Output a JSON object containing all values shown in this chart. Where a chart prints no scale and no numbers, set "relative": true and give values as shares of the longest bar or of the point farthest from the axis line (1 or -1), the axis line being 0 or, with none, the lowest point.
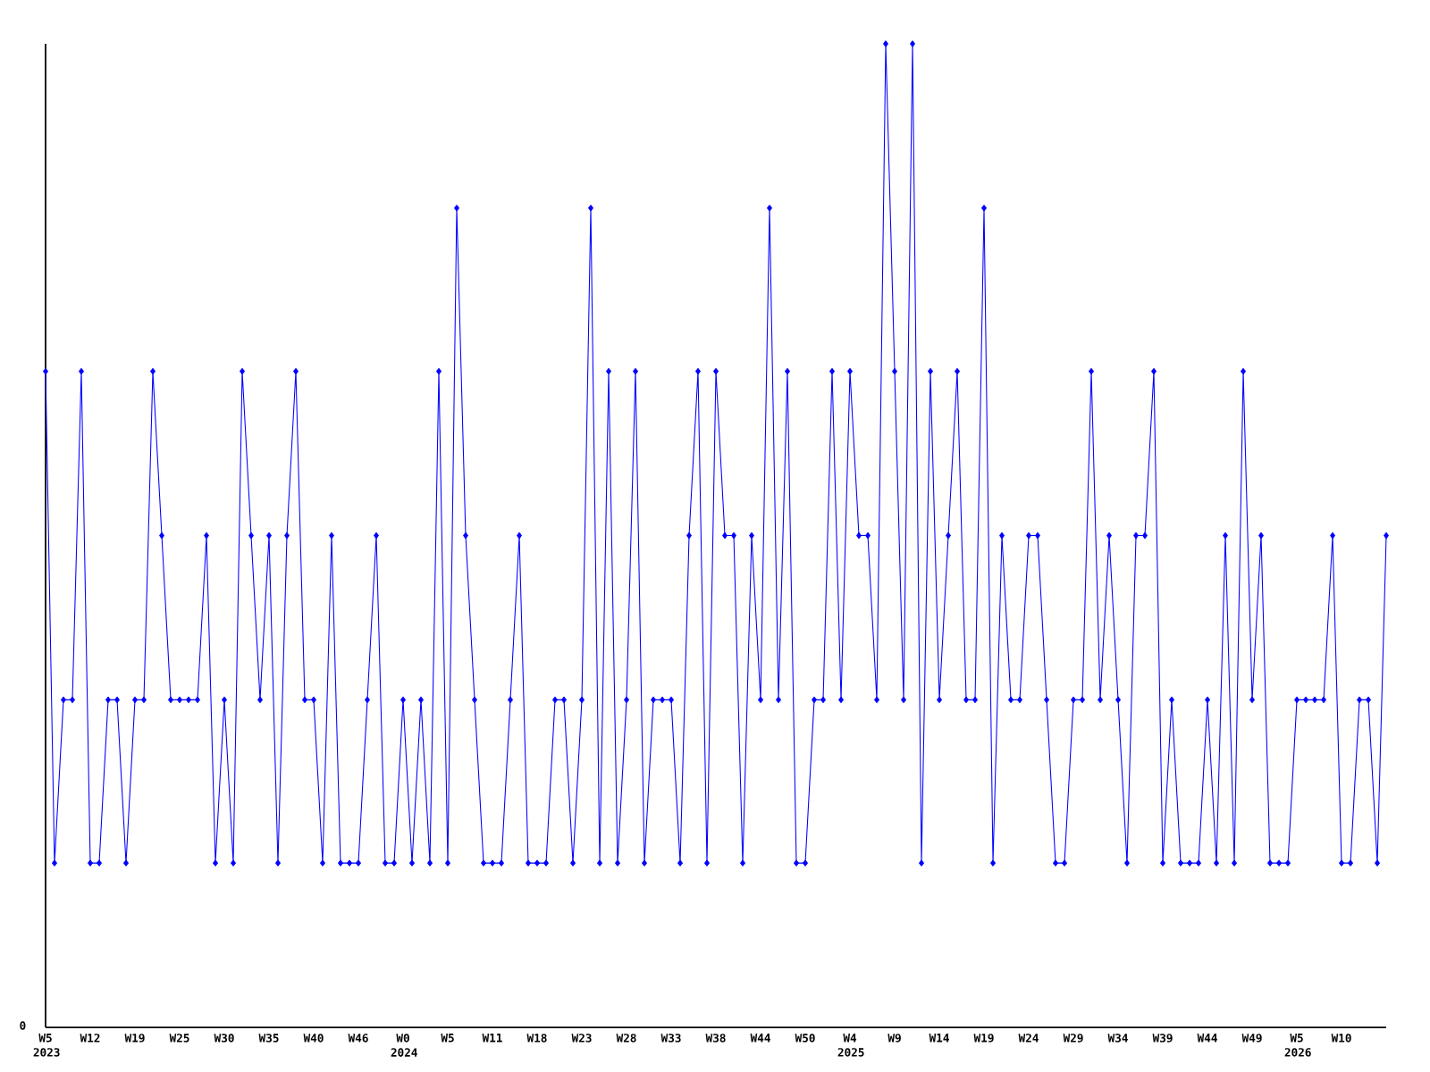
{
  "chart_data": {
    "type": "line",
    "relative": true,
    "marker": "diamond",
    "line_style": "solid",
    "categories": [
      "W5 2023",
      null,
      null,
      null,
      null,
      "W12",
      null,
      null,
      null,
      null,
      "W19",
      null,
      null,
      null,
      null,
      "W25",
      null,
      null,
      null,
      null,
      "W30",
      null,
      null,
      null,
      null,
      "W35",
      null,
      null,
      null,
      null,
      "W40",
      null,
      null,
      null,
      null,
      "W46",
      null,
      null,
      null,
      null,
      "W0 2024",
      null,
      null,
      null,
      null,
      "W5",
      null,
      null,
      null,
      null,
      "W11",
      null,
      null,
      null,
      null,
      "W18",
      null,
      null,
      null,
      null,
      "W23",
      null,
      null,
      null,
      null,
      "W28",
      null,
      null,
      null,
      null,
      "W33",
      null,
      null,
      null,
      null,
      "W38",
      null,
      null,
      null,
      null,
      "W44",
      null,
      null,
      null,
      null,
      "W50",
      null,
      null,
      null,
      null,
      "W4 2025",
      null,
      null,
      null,
      null,
      "W9",
      null,
      null,
      null,
      null,
      "W14",
      null,
      null,
      null,
      null,
      "W19",
      null,
      null,
      null,
      null,
      "W24",
      null,
      null,
      null,
      null,
      "W29",
      null,
      null,
      null,
      null,
      "W34",
      null,
      null,
      null,
      null,
      "W39",
      null,
      null,
      null,
      null,
      "W44",
      null,
      null,
      null,
      null,
      "W49",
      null,
      null,
      null,
      null,
      "W5 2026",
      null,
      null,
      null,
      null,
      "W10",
      null,
      null,
      null,
      null,
      null
    ],
    "series": [
      {
        "color": "#0000ff",
        "values": [
          0.667,
          0.167,
          0.333,
          0.333,
          0.667,
          0.167,
          0.167,
          0.333,
          0.333,
          0.167,
          0.333,
          0.333,
          0.667,
          0.5,
          0.333,
          0.333,
          0.333,
          0.333,
          0.5,
          0.167,
          0.333,
          0.167,
          0.667,
          0.5,
          0.333,
          0.5,
          0.167,
          0.5,
          0.667,
          0.333,
          0.333,
          0.167,
          0.5,
          0.167,
          0.167,
          0.167,
          0.333,
          0.5,
          0.167,
          0.167,
          0.333,
          0.167,
          0.333,
          0.167,
          0.667,
          0.167,
          0.833,
          0.5,
          0.333,
          0.167,
          0.167,
          0.167,
          0.333,
          0.5,
          0.167,
          0.167,
          0.167,
          0.333,
          0.333,
          0.167,
          0.333,
          0.833,
          0.167,
          0.667,
          0.167,
          0.333,
          0.667,
          0.167,
          0.333,
          0.333,
          0.333,
          0.167,
          0.5,
          0.667,
          0.167,
          0.667,
          0.5,
          0.5,
          0.167,
          0.5,
          0.333,
          0.833,
          0.333,
          0.667,
          0.167,
          0.167,
          0.333,
          0.333,
          0.667,
          0.333,
          0.667,
          0.5,
          0.5,
          0.333,
          1,
          0.667,
          0.333,
          1,
          0.167,
          0.667,
          0.333,
          0.5,
          0.667,
          0.333,
          0.333,
          0.833,
          0.167,
          0.5,
          0.333,
          0.333,
          0.5,
          0.5,
          0.333,
          0.167,
          0.167,
          0.333,
          0.333,
          0.667,
          0.333,
          0.5,
          0.333,
          0.167,
          0.5,
          0.5,
          0.667,
          0.167,
          0.333,
          0.167,
          0.167,
          0.167,
          0.333,
          0.167,
          0.5,
          0.167,
          0.667,
          0.333,
          0.5,
          0.167,
          0.167,
          0.167,
          0.333,
          0.333,
          0.333,
          0.333,
          0.5,
          0.167,
          0.167,
          0.333,
          0.333,
          0.167,
          0.5
        ]
      }
    ],
    "annotations": [
      "0"
    ]
  }
}
